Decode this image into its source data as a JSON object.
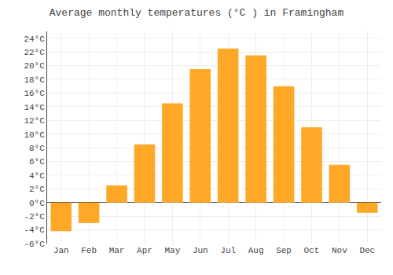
{
  "chart_data": {
    "type": "bar",
    "title": "Average monthly temperatures (°C ) in Framingham",
    "categories": [
      "Jan",
      "Feb",
      "Mar",
      "Apr",
      "May",
      "Jun",
      "Jul",
      "Aug",
      "Sep",
      "Oct",
      "Nov",
      "Dec"
    ],
    "values": [
      -4.2,
      -3.0,
      2.5,
      8.5,
      14.5,
      19.5,
      22.5,
      21.5,
      17.0,
      11.0,
      5.5,
      -1.5
    ],
    "color": "#FFA726",
    "ylim": [
      -6,
      25
    ],
    "yticks": [
      {
        "value": -6,
        "label": "-6°C"
      },
      {
        "value": -4,
        "label": "-4°C"
      },
      {
        "value": -2,
        "label": "-2°C"
      },
      {
        "value": 0,
        "label": "0°C"
      },
      {
        "value": 2,
        "label": "2°C"
      },
      {
        "value": 4,
        "label": "4°C"
      },
      {
        "value": 6,
        "label": "6°C"
      },
      {
        "value": 8,
        "label": "8°C"
      },
      {
        "value": 10,
        "label": "10°C"
      },
      {
        "value": 12,
        "label": "12°C"
      },
      {
        "value": 14,
        "label": "14°C"
      },
      {
        "value": 16,
        "label": "16°C"
      },
      {
        "value": 18,
        "label": "18°C"
      },
      {
        "value": 20,
        "label": "20°C"
      },
      {
        "value": 22,
        "label": "22°C"
      },
      {
        "value": 24,
        "label": "24°C"
      }
    ],
    "grid": true
  }
}
